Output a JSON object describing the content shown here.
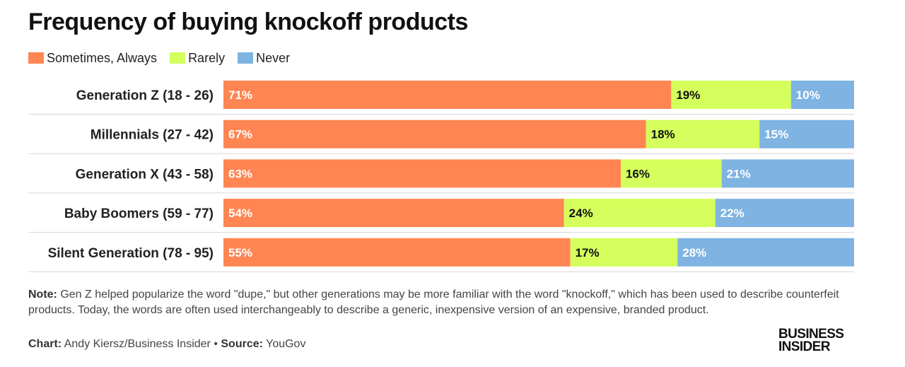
{
  "title": "Frequency of buying knockoff products",
  "legend": [
    {
      "label": "Sometimes, Always",
      "color": "#ff8552"
    },
    {
      "label": "Rarely",
      "color": "#d4ff5c"
    },
    {
      "label": "Never",
      "color": "#7eb3e2"
    }
  ],
  "chart_data": {
    "type": "bar",
    "orientation": "horizontal",
    "stacked": true,
    "title": "Frequency of buying knockoff products",
    "categories": [
      "Generation Z (18 - 26)",
      "Millennials (27 - 42)",
      "Generation X (43 - 58)",
      "Baby Boomers (59 - 77)",
      "Silent Generation (78 - 95)"
    ],
    "series": [
      {
        "name": "Sometimes, Always",
        "values": [
          71,
          67,
          63,
          54,
          55
        ],
        "labels": [
          "71%",
          "67%",
          "63%",
          "54%",
          "55%"
        ],
        "color": "#ff8552",
        "text_color": "#ffffff"
      },
      {
        "name": "Rarely",
        "values": [
          19,
          18,
          16,
          24,
          17
        ],
        "labels": [
          "19%",
          "18%",
          "16%",
          "24%",
          "17%"
        ],
        "color": "#d4ff5c",
        "text_color": "#111111"
      },
      {
        "name": "Never",
        "values": [
          10,
          15,
          21,
          22,
          28
        ],
        "labels": [
          "10%",
          "15%",
          "21%",
          "22%",
          "28%"
        ],
        "color": "#7eb3e2",
        "text_color": "#ffffff"
      }
    ],
    "xlim": [
      0,
      100
    ],
    "xlabel": "",
    "ylabel": "",
    "legend_position": "top-left",
    "grid": false
  },
  "note": {
    "label": "Note:",
    "text": " Gen Z helped popularize the word \"dupe,\" but other generations may be more familiar with the word \"knockoff,\" which has been used to describe counterfeit products. Today, the words are often used interchangeably to describe a generic, inexpensive version of an expensive, branded product."
  },
  "credit": {
    "chart_label": "Chart:",
    "chart_text": " Andy Kiersz/Business Insider",
    "separator": " • ",
    "source_label": "Source:",
    "source_text": " YouGov"
  },
  "logo": {
    "line1": "BUSINESS",
    "line2": "INSIDER"
  }
}
